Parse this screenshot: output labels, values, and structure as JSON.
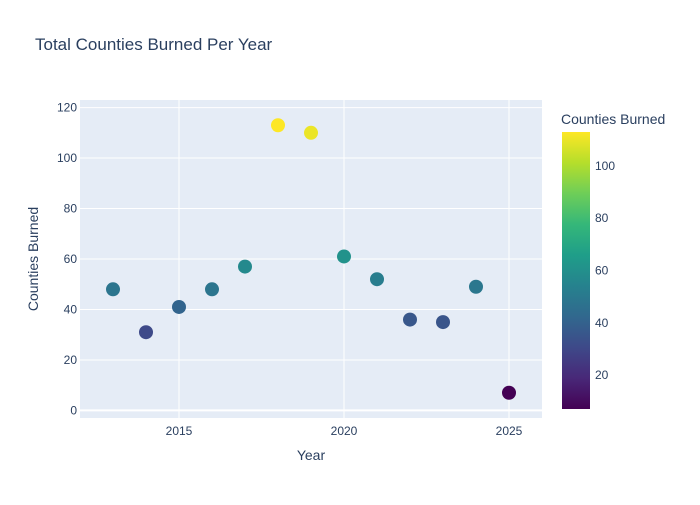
{
  "chart_data": {
    "type": "scatter",
    "title": "Total Counties Burned Per Year",
    "xlabel": "Year",
    "ylabel": "Counties Burned",
    "colorbar_title": "Counties Burned",
    "xlim": [
      2012,
      2026
    ],
    "ylim": [
      -3,
      123
    ],
    "xticks": [
      2015,
      2020,
      2025
    ],
    "yticks": [
      0,
      20,
      40,
      60,
      80,
      100,
      120
    ],
    "colorbar_range": [
      7,
      113
    ],
    "colorbar_ticks": [
      20,
      40,
      60,
      80,
      100
    ],
    "colorscale": "Viridis",
    "grid": true,
    "legend": "none",
    "x": [
      2013,
      2014,
      2015,
      2016,
      2017,
      2018,
      2019,
      2020,
      2021,
      2022,
      2023,
      2024,
      2025
    ],
    "y": [
      48,
      31,
      41,
      48,
      57,
      113,
      110,
      61,
      52,
      36,
      35,
      49,
      7
    ]
  },
  "colors": {
    "plot_bg": "#e5ecf6",
    "grid": "#ffffff",
    "text": "#2a3f5f",
    "viridis": [
      "#440154",
      "#482878",
      "#3e4989",
      "#31688e",
      "#26828e",
      "#1f9e89",
      "#35b779",
      "#6ece58",
      "#b5de2b",
      "#fde725"
    ]
  }
}
